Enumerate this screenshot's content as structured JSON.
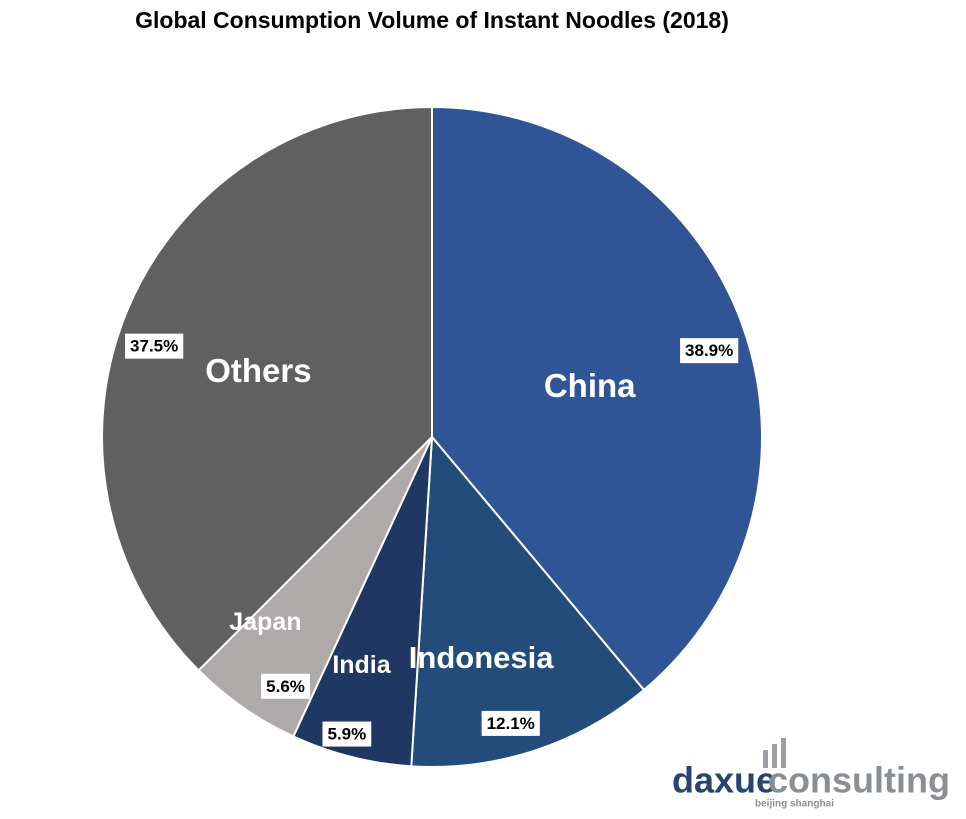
{
  "chart_data": {
    "type": "pie",
    "title": "Global Consumption Volume of Instant Noodles (2018)",
    "categories": [
      "China",
      "Indonesia",
      "India",
      "Japan",
      "Others"
    ],
    "values": [
      38.9,
      12.1,
      5.9,
      5.6,
      37.5
    ],
    "value_labels": [
      "38.9%",
      "12.1%",
      "5.9%",
      "5.6%",
      "37.5%"
    ],
    "colors": [
      "#2f5597",
      "#234c7a",
      "#213763",
      "#aeaaaa",
      "#606060"
    ]
  },
  "watermark": {
    "brand_part1": "daxue",
    "brand_part2": "consulting",
    "tagline": "beijing shanghai"
  }
}
